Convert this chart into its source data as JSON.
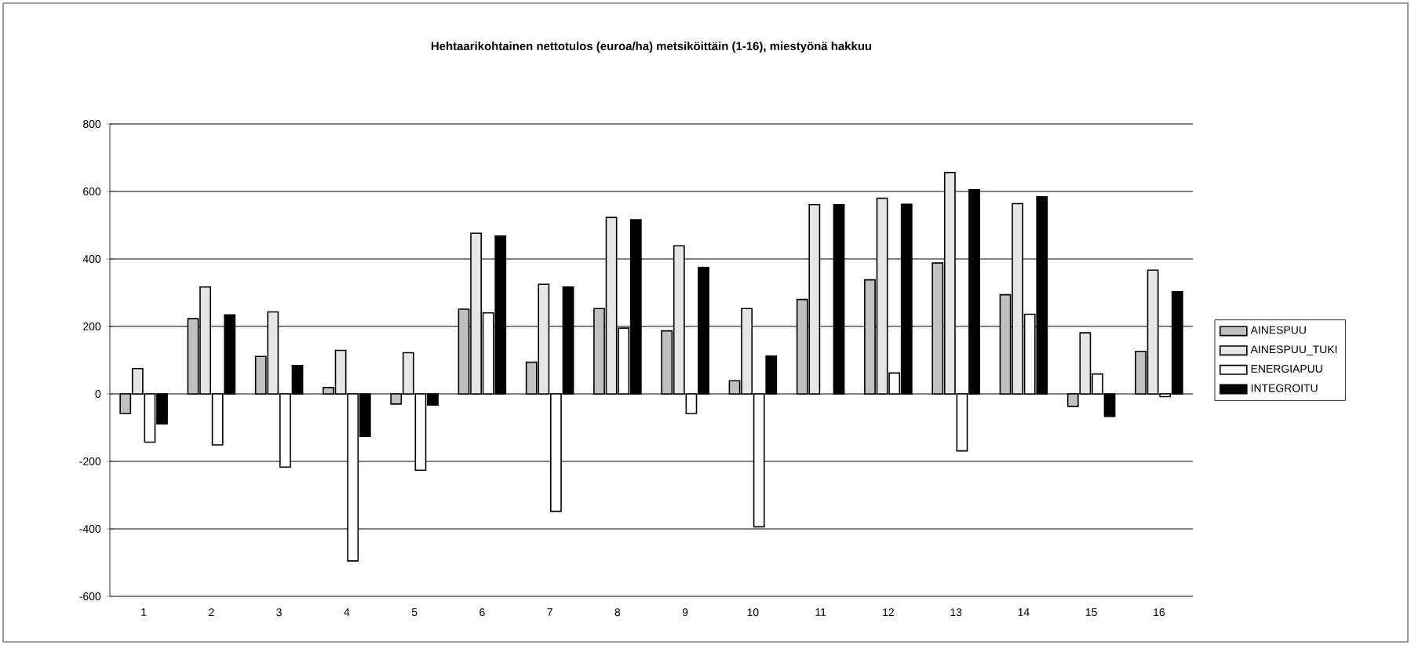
{
  "chart_data": {
    "type": "bar",
    "title": "Hehtaarikohtainen nettotulos (euroa/ha) metsiköittäin (1-16), miestyönä hakkuu",
    "categories": [
      "1",
      "2",
      "3",
      "4",
      "5",
      "6",
      "7",
      "8",
      "9",
      "10",
      "11",
      "12",
      "13",
      "14",
      "15",
      "16"
    ],
    "series": [
      {
        "name": "AINESPUU",
        "color": "#c0c0c0",
        "values": [
          -58,
          223,
          111,
          19,
          -30,
          251,
          94,
          253,
          187,
          39,
          280,
          338,
          388,
          294,
          -37,
          126
        ]
      },
      {
        "name": "AINESPUU_TUKI",
        "color": "#e6e6e6",
        "values": [
          75,
          317,
          243,
          129,
          122,
          476,
          325,
          523,
          439,
          253,
          561,
          580,
          656,
          564,
          181,
          367
        ]
      },
      {
        "name": "ENERGIAPUU",
        "color": "#ffffff",
        "values": [
          -143,
          -151,
          -217,
          -495,
          -226,
          240,
          -348,
          195,
          -58,
          -394,
          null,
          62,
          -169,
          236,
          59,
          -8
        ]
      },
      {
        "name": "INTEGROITU",
        "color": "#000000",
        "values": [
          -89,
          234,
          84,
          -126,
          -33,
          468,
          317,
          516,
          375,
          112,
          561,
          562,
          605,
          584,
          -67,
          303
        ]
      }
    ],
    "ylim": [
      -600,
      800
    ],
    "yticks": [
      -600,
      -400,
      -200,
      0,
      200,
      400,
      600,
      800
    ],
    "grid": "y",
    "legend": "right"
  }
}
